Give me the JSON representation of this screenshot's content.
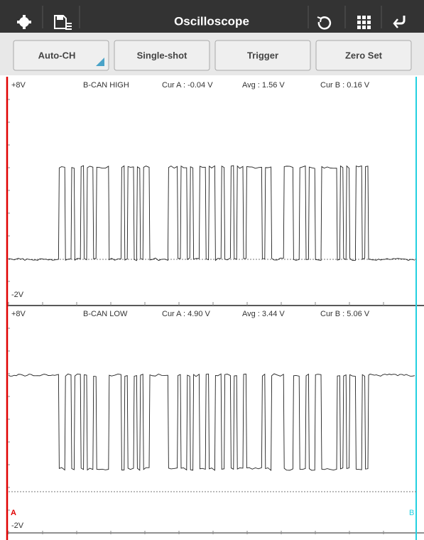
{
  "toolbar": {
    "title": "Oscilloscope"
  },
  "buttons": [
    "Auto-CH",
    "Single-shot",
    "Trigger",
    "Zero Set"
  ],
  "channels": [
    {
      "top_label": "+8V",
      "name": "B-CAN HIGH",
      "cur_a": "Cur A : -0.04 V",
      "avg": "Avg : 1.56 V",
      "cur_b": "Cur B : 0.16 V",
      "bottom_label": "-2V"
    },
    {
      "top_label": "+8V",
      "name": "B-CAN LOW",
      "cur_a": "Cur A : 4.90 V",
      "avg": "Avg : 3.44 V",
      "cur_b": "Cur B : 5.06 V",
      "bottom_label": "-2V"
    }
  ],
  "cursors": {
    "a": "A",
    "b": "B"
  }
}
